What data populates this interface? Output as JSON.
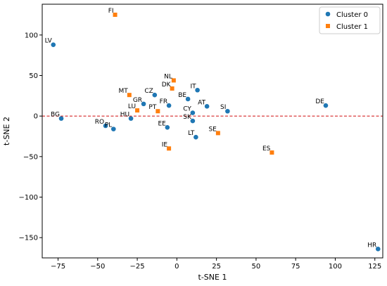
{
  "chart_data": {
    "type": "scatter",
    "title": "",
    "xlabel": "t-SNE 1",
    "ylabel": "t-SNE 2",
    "xlim": [
      -85,
      130
    ],
    "ylim": [
      -175,
      138
    ],
    "xticks": [
      -75,
      -50,
      -25,
      0,
      25,
      50,
      75,
      100,
      125
    ],
    "yticks": [
      -150,
      -100,
      -50,
      0,
      50,
      100
    ],
    "grid": false,
    "legend_position": "top-right",
    "reference_line": {
      "axis": "y",
      "value": 0,
      "color": "#d62728",
      "style": "dashed"
    },
    "series": [
      {
        "name": "Cluster 0",
        "marker": "circle",
        "color": "#1f77b4",
        "points": [
          {
            "label": "LV",
            "x": -78,
            "y": 88
          },
          {
            "label": "BG",
            "x": -73,
            "y": -3
          },
          {
            "label": "RO",
            "x": -45,
            "y": -12
          },
          {
            "label": "PL",
            "x": -40,
            "y": -16
          },
          {
            "label": "HU",
            "x": -29,
            "y": -3
          },
          {
            "label": "GR",
            "x": -21,
            "y": 15
          },
          {
            "label": "CZ",
            "x": -14,
            "y": 26
          },
          {
            "label": "FR",
            "x": -5,
            "y": 13
          },
          {
            "label": "EE",
            "x": -6,
            "y": -14
          },
          {
            "label": "BE",
            "x": 7,
            "y": 21
          },
          {
            "label": "IT",
            "x": 13,
            "y": 32
          },
          {
            "label": "CY",
            "x": 10,
            "y": 4
          },
          {
            "label": "SK",
            "x": 10,
            "y": -6
          },
          {
            "label": "AT",
            "x": 19,
            "y": 12
          },
          {
            "label": "LT",
            "x": 12,
            "y": -26
          },
          {
            "label": "SI",
            "x": 32,
            "y": 6
          },
          {
            "label": "DE",
            "x": 94,
            "y": 13
          },
          {
            "label": "HR",
            "x": 127,
            "y": -164
          }
        ]
      },
      {
        "name": "Cluster 1",
        "marker": "square",
        "color": "#ff7f0e",
        "points": [
          {
            "label": "FI",
            "x": -39,
            "y": 125
          },
          {
            "label": "MT",
            "x": -30,
            "y": 26
          },
          {
            "label": "LU",
            "x": -25,
            "y": 7
          },
          {
            "label": "PT",
            "x": -12,
            "y": 6
          },
          {
            "label": "NL",
            "x": -2,
            "y": 44
          },
          {
            "label": "DK",
            "x": -3,
            "y": 34
          },
          {
            "label": "IE",
            "x": -5,
            "y": -40
          },
          {
            "label": "SE",
            "x": 26,
            "y": -21
          },
          {
            "label": "ES",
            "x": 60,
            "y": -45
          }
        ]
      }
    ]
  }
}
